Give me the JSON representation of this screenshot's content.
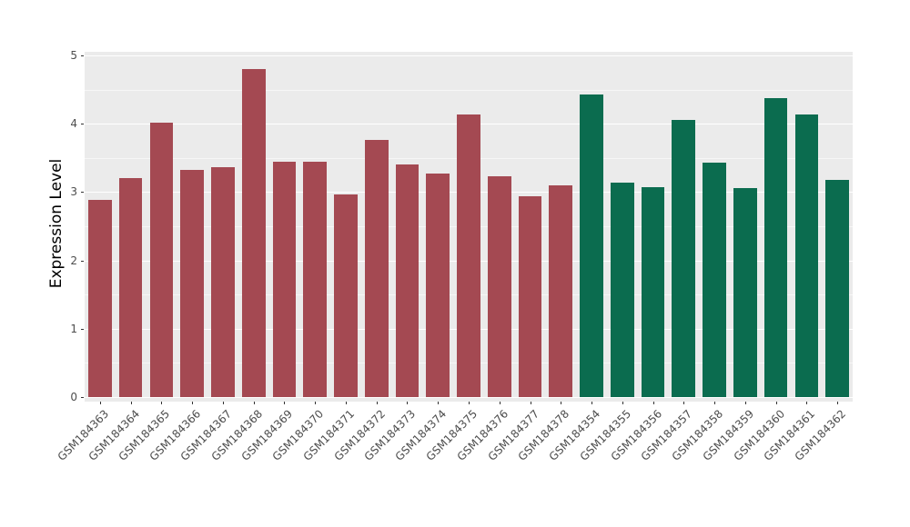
{
  "chart_data": {
    "type": "bar",
    "title": "",
    "xlabel": "",
    "ylabel": "Expression Level",
    "ylim": [
      0,
      5
    ],
    "yticks": [
      0,
      1,
      2,
      3,
      4,
      5
    ],
    "grid": "major-white-minor-white-on-gray",
    "legend": "none",
    "panel_bg": "#EBEBEB",
    "grid_color": "#FFFFFF",
    "axis_text_color": "#4D4D4D",
    "categories": [
      "GSM184363",
      "GSM184364",
      "GSM184365",
      "GSM184366",
      "GSM184367",
      "GSM184368",
      "GSM184369",
      "GSM184370",
      "GSM184371",
      "GSM184372",
      "GSM184373",
      "GSM184374",
      "GSM184375",
      "GSM184376",
      "GSM184377",
      "GSM184378",
      "GSM184354",
      "GSM184355",
      "GSM184356",
      "GSM184357",
      "GSM184358",
      "GSM184359",
      "GSM184360",
      "GSM184361",
      "GSM184362"
    ],
    "values": [
      2.88,
      3.2,
      4.01,
      3.33,
      3.36,
      4.8,
      3.44,
      3.45,
      2.97,
      3.76,
      3.41,
      3.27,
      4.13,
      3.23,
      2.94,
      3.1,
      4.43,
      3.14,
      3.07,
      4.05,
      3.43,
      3.06,
      4.37,
      4.13,
      3.18
    ],
    "bar_groups": [
      "maroon",
      "maroon",
      "maroon",
      "maroon",
      "maroon",
      "maroon",
      "maroon",
      "maroon",
      "maroon",
      "maroon",
      "maroon",
      "maroon",
      "maroon",
      "maroon",
      "maroon",
      "maroon",
      "green",
      "green",
      "green",
      "green",
      "green",
      "green",
      "green",
      "green",
      "green"
    ],
    "group_colors": {
      "maroon": "#A44952",
      "green": "#0B6C4F"
    }
  }
}
